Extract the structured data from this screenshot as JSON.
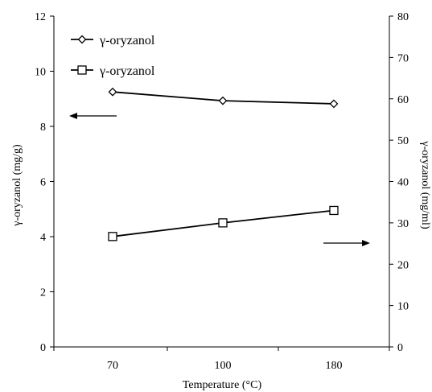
{
  "chart_data": {
    "type": "line",
    "categories": [
      "70",
      "100",
      "180"
    ],
    "xlabel": "Temperature (°C)",
    "ylabel_left": "γ-oryzanol (mg/g)",
    "ylabel_right": "γ-oryzanol (mg/ml)",
    "ylim_left": [
      0,
      12
    ],
    "yticks_left": [
      "0",
      "2",
      "4",
      "6",
      "8",
      "10",
      "12"
    ],
    "ylim_right": [
      0,
      80
    ],
    "yticks_right": [
      "0",
      "10",
      "20",
      "30",
      "40",
      "50",
      "60",
      "70",
      "80"
    ],
    "grid": false,
    "legend_position": "top-left",
    "series": [
      {
        "name": "γ-oryzanol",
        "axis": "left",
        "marker": "diamond",
        "values": [
          9.25,
          8.93,
          8.82
        ]
      },
      {
        "name": "γ-oryzanol",
        "axis": "right",
        "marker": "square",
        "values": [
          26.7,
          30.0,
          33.0
        ]
      }
    ],
    "annotations": [
      {
        "type": "arrow",
        "direction": "left",
        "points_to": "left-axis"
      },
      {
        "type": "arrow",
        "direction": "right",
        "points_to": "right-axis"
      }
    ]
  }
}
